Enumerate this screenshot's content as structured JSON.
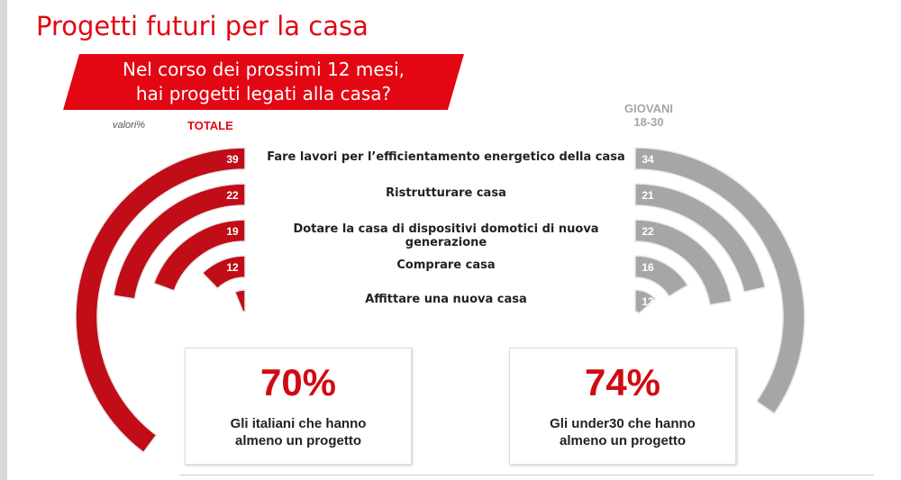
{
  "title": "Progetti futuri per la casa",
  "question": [
    "Nel corso dei prossimi 12 mesi,",
    "hai progetti legati alla casa?"
  ],
  "unit_note": "valori%",
  "chart_data": {
    "type": "bar",
    "style": "radial",
    "title": "Nel corso dei prossimi 12 mesi, hai progetti legati alla casa?",
    "categories": [
      "Fare lavori per l’efficientamento energetico della casa",
      "Ristrutturare casa",
      "Dotare la casa di dispositivi domotici di nuova generazione",
      "Comprare casa",
      "Affittare una nuova casa"
    ],
    "series": [
      {
        "name": "TOTALE",
        "values": [
          39,
          22,
          19,
          12,
          6
        ],
        "color": "#c00d17"
      },
      {
        "name": "GIOVANI 18-30",
        "values": [
          34,
          21,
          22,
          16,
          13
        ],
        "color": "#a6a6a6"
      }
    ]
  },
  "series_labels": {
    "totale": "TOTALE",
    "giovani_1": "GIOVANI",
    "giovani_2": "18-30"
  },
  "summary": [
    {
      "value": "70%",
      "caption_1": "Gli italiani che hanno",
      "caption_2": "almeno un progetto"
    },
    {
      "value": "74%",
      "caption_1": "Gli under30 che hanno",
      "caption_2": "almeno un progetto"
    }
  ]
}
